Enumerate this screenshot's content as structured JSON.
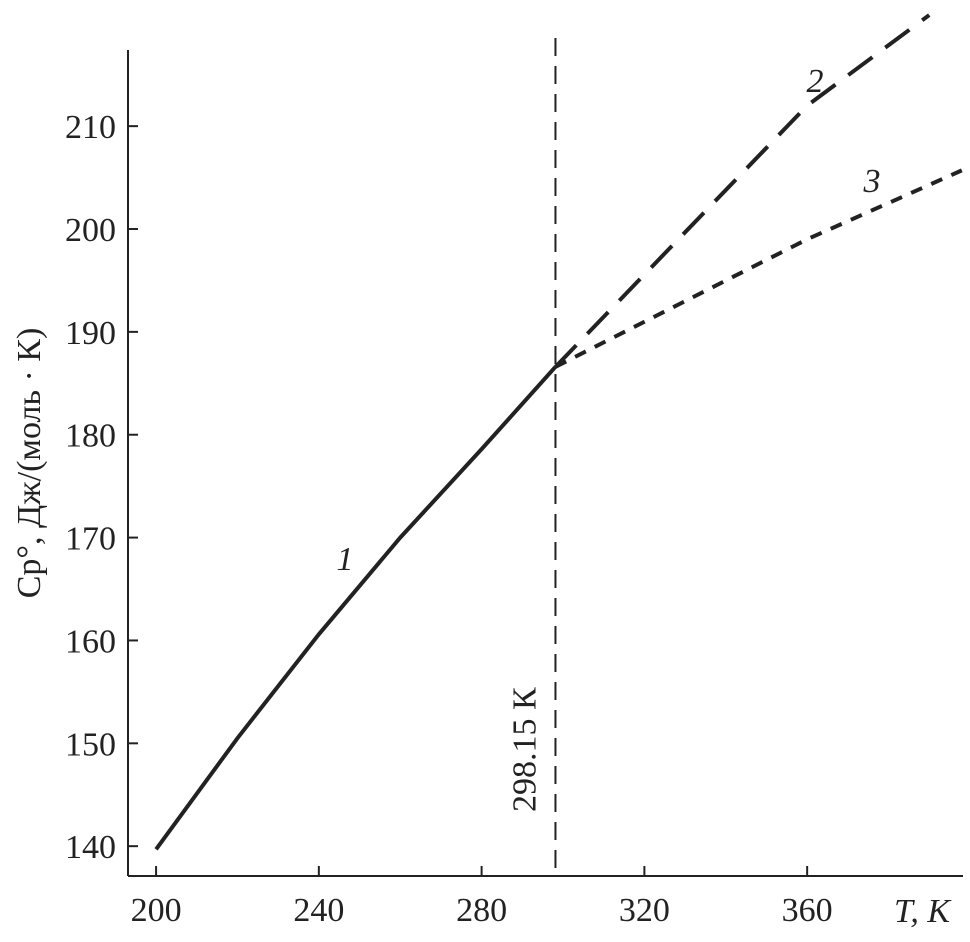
{
  "chart_data": {
    "type": "line",
    "y_label": "Cp°, Дж/(моль · К)",
    "x_label": "T, К",
    "xlim": [
      193.1,
      398.3
    ],
    "ylim": [
      137.1,
      221
    ],
    "xticks": [
      200,
      240,
      280,
      320,
      360
    ],
    "yticks": [
      140,
      150,
      160,
      170,
      180,
      190,
      200,
      210
    ],
    "color": "#222222",
    "vline": {
      "value": 298.15,
      "label": "298.15 К"
    },
    "series": [
      {
        "name": "1",
        "style": "solid",
        "x": [
          200,
          220,
          240,
          260,
          280,
          298.15
        ],
        "values": [
          139.7,
          150.5,
          160.6,
          170,
          178.6,
          186.6
        ]
      },
      {
        "name": "2",
        "style": "dashed",
        "x": [
          298.15,
          360,
          390
        ],
        "values": [
          186.6,
          212,
          220.8
        ]
      },
      {
        "name": "3",
        "style": "dotted",
        "x": [
          298.15,
          360,
          398
        ],
        "values": [
          186.6,
          199,
          205.7
        ]
      }
    ]
  }
}
